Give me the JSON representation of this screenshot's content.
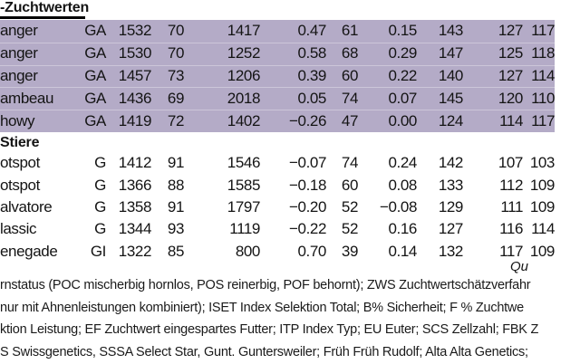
{
  "title": "-Zuchtwerten",
  "colors": {
    "row_highlight": "#b4abc7",
    "text": "#141414",
    "title_rule": "#000000"
  },
  "table": {
    "highlight_group": {
      "rows": [
        {
          "name": "anger",
          "code": "GA",
          "values": [
            "1532",
            "70",
            "1417",
            "0.47",
            "61",
            "0.15",
            "143",
            "127",
            "117"
          ]
        },
        {
          "name": "anger",
          "code": "GA",
          "values": [
            "1530",
            "70",
            "1252",
            "0.58",
            "68",
            "0.29",
            "147",
            "125",
            "118"
          ]
        },
        {
          "name": "anger",
          "code": "GA",
          "values": [
            "1457",
            "73",
            "1206",
            "0.39",
            "60",
            "0.22",
            "140",
            "127",
            "114"
          ]
        },
        {
          "name": "ambeau",
          "code": "GA",
          "values": [
            "1436",
            "69",
            "2018",
            "0.05",
            "74",
            "0.07",
            "145",
            "120",
            "110"
          ]
        },
        {
          "name": "howy",
          "code": "GA",
          "values": [
            "1419",
            "72",
            "1402",
            "−0.26",
            "47",
            "0.00",
            "124",
            "114",
            "117"
          ]
        }
      ]
    },
    "stiere_group": {
      "label": "Stiere",
      "rows": [
        {
          "name": "otspot",
          "code": "G",
          "values": [
            "1412",
            "91",
            "1546",
            "−0.07",
            "74",
            "0.24",
            "142",
            "107",
            "103"
          ]
        },
        {
          "name": "otspot",
          "code": "G",
          "values": [
            "1366",
            "88",
            "1585",
            "−0.18",
            "60",
            "0.08",
            "133",
            "112",
            "109"
          ]
        },
        {
          "name": "alvatore",
          "code": "G",
          "values": [
            "1358",
            "91",
            "1797",
            "−0.20",
            "52",
            "−0.08",
            "129",
            "111",
            "109"
          ]
        },
        {
          "name": "lassic",
          "code": "G",
          "values": [
            "1344",
            "93",
            "1119",
            "−0.22",
            "52",
            "0.16",
            "127",
            "116",
            "114"
          ]
        },
        {
          "name": "enegade",
          "code": "GI",
          "values": [
            "1322",
            "85",
            "800",
            "0.70",
            "39",
            "0.14",
            "132",
            "117",
            "109"
          ]
        }
      ]
    }
  },
  "source_label": "Qu",
  "footnotes": [
    "rnstatus (POC mischerbig hornlos, POS reinerbig, POF behornt); ZWS Zuchtwertschätzverfahr",
    "nur mit Ahnenleistungen kombiniert); ISET Index Selektion Total; B% Sicherheit; F % Zuchtwe",
    "ktion Leistung; EF Zuchtwert eingespartes Futter; ITP Index Typ; EU Euter; SCS Zellzahl; FBK Z",
    "S Swissgenetics, SSSA Select Star, Gunt. Guntersweiler; Früh Früh Rudolf; Alta Alta Genetics;"
  ]
}
